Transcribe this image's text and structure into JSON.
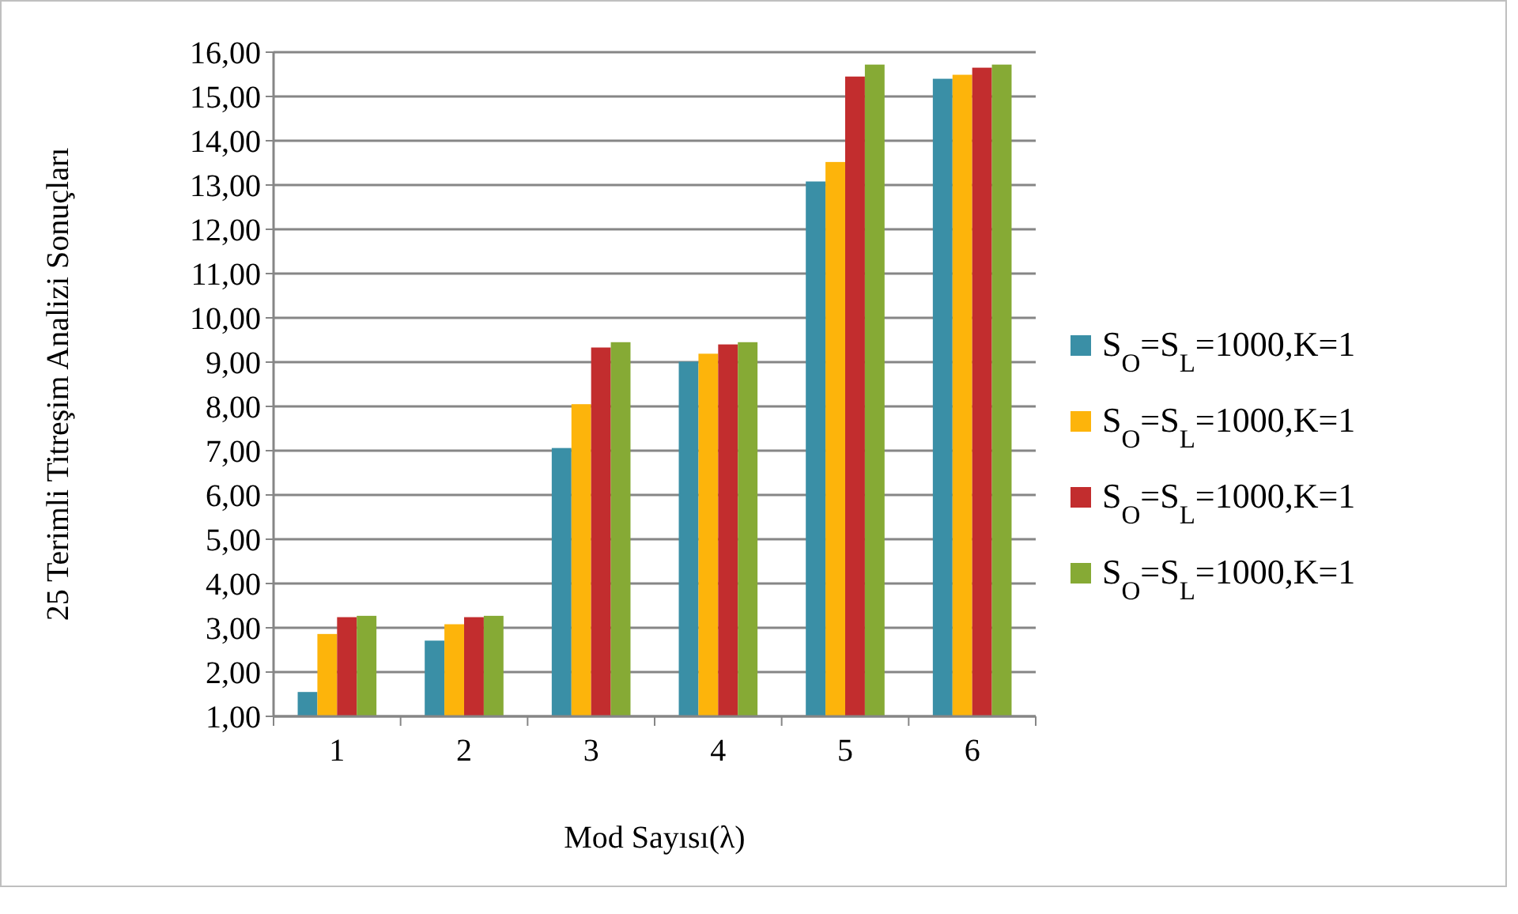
{
  "chart_data": {
    "type": "bar",
    "xlabel": "Mod Sayısı(λ)",
    "ylabel": "25 Terimli Titreşim Analizi Sonuçları",
    "categories": [
      "1",
      "2",
      "3",
      "4",
      "5",
      "6"
    ],
    "series": [
      {
        "name": "S$_{O}$=S$_{L}$=1000,K=1",
        "color": "#3a8fa6",
        "values": [
          1.55,
          2.71,
          7.06,
          9.01,
          13.08,
          15.4
        ]
      },
      {
        "name": "S$_{O}$=S$_{L}$=1000,K=1",
        "color": "#fdb40b",
        "values": [
          2.86,
          3.08,
          8.05,
          9.19,
          13.52,
          15.49
        ]
      },
      {
        "name": "S$_{O}$=S$_{L}$=1000,K=1",
        "color": "#c22d2e",
        "values": [
          3.24,
          3.24,
          9.33,
          9.4,
          15.45,
          15.65
        ]
      },
      {
        "name": "S$_{O}$=S$_{L}$=1000,K=1",
        "color": "#86aa35",
        "values": [
          3.27,
          3.27,
          9.45,
          9.45,
          15.72,
          15.72
        ]
      }
    ],
    "ylim": [
      1,
      16
    ],
    "yticks": [
      {
        "value": 1,
        "label": "1,00"
      },
      {
        "value": 2,
        "label": "2,00"
      },
      {
        "value": 3,
        "label": "3,00"
      },
      {
        "value": 4,
        "label": "4,00"
      },
      {
        "value": 5,
        "label": "5,00"
      },
      {
        "value": 6,
        "label": "6,00"
      },
      {
        "value": 7,
        "label": "7,00"
      },
      {
        "value": 8,
        "label": "8,00"
      },
      {
        "value": 9,
        "label": "9,00"
      },
      {
        "value": 10,
        "label": "10,00"
      },
      {
        "value": 11,
        "label": "11,00"
      },
      {
        "value": 12,
        "label": "12,00"
      },
      {
        "value": 13,
        "label": "13,00"
      },
      {
        "value": 14,
        "label": "14,00"
      },
      {
        "value": 15,
        "label": "15,00"
      },
      {
        "value": 16,
        "label": "16,00"
      }
    ],
    "grid": "y",
    "legend": "right"
  }
}
